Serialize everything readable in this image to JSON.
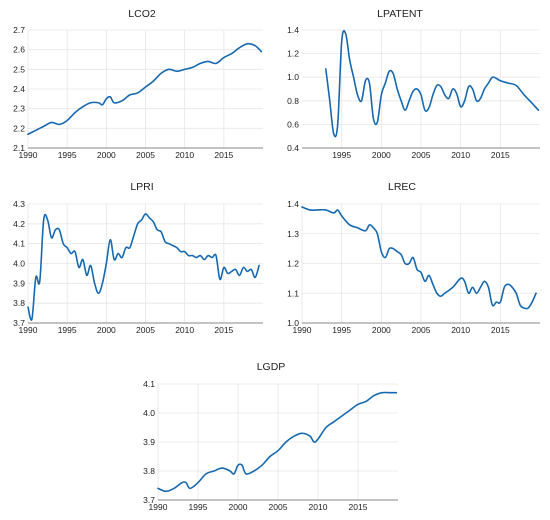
{
  "palette": {
    "line": "#1668b0",
    "grid": "#e6e6e6",
    "axis": "#666666"
  },
  "chart_data": [
    {
      "type": "line",
      "title": "LCO2",
      "xlim": [
        1990,
        2020
      ],
      "ylim": [
        2.1,
        2.7
      ],
      "xticks": [
        1990,
        1995,
        2000,
        2005,
        2010,
        2015
      ],
      "yticks": [
        2.1,
        2.2,
        2.3,
        2.4,
        2.5,
        2.6,
        2.7
      ],
      "series": [
        {
          "x": [
            1990,
            1991,
            1992,
            1993,
            1994,
            1995,
            1996,
            1997,
            1998,
            1999,
            1999.5,
            2000,
            2000.5,
            2001,
            2002,
            2003,
            2004,
            2005,
            2006,
            2007,
            2008,
            2009,
            2010,
            2011,
            2012,
            2013,
            2014,
            2015,
            2016,
            2017,
            2018,
            2019,
            2019.8
          ],
          "y": [
            2.17,
            2.19,
            2.21,
            2.23,
            2.22,
            2.24,
            2.28,
            2.31,
            2.33,
            2.33,
            2.32,
            2.35,
            2.36,
            2.33,
            2.34,
            2.37,
            2.38,
            2.41,
            2.44,
            2.48,
            2.5,
            2.49,
            2.5,
            2.51,
            2.53,
            2.54,
            2.53,
            2.56,
            2.58,
            2.61,
            2.63,
            2.62,
            2.59
          ]
        }
      ]
    },
    {
      "type": "line",
      "title": "LPATENT",
      "xlim": [
        1990,
        2020
      ],
      "ylim": [
        0.4,
        1.4
      ],
      "xticks": [
        1995,
        2000,
        2005,
        2010,
        2015
      ],
      "yticks": [
        0.4,
        0.6,
        0.8,
        1.0,
        1.2,
        1.4
      ],
      "series": [
        {
          "x": [
            1993,
            1993.5,
            1994,
            1994.5,
            1995,
            1995.5,
            1996,
            1996.5,
            1997,
            1997.5,
            1998,
            1998.5,
            1999,
            1999.5,
            2000,
            2000.5,
            2001,
            2001.5,
            2002,
            2002.5,
            2003,
            2003.5,
            2004,
            2004.5,
            2005,
            2005.5,
            2006,
            2006.5,
            2007,
            2007.5,
            2008,
            2008.5,
            2009,
            2009.5,
            2010,
            2010.5,
            2011,
            2011.5,
            2012,
            2012.5,
            2013,
            2013.5,
            2014,
            2014.5,
            2015,
            2016,
            2017,
            2018,
            2019,
            2019.8
          ],
          "y": [
            1.07,
            0.8,
            0.52,
            0.6,
            1.3,
            1.37,
            1.15,
            1.0,
            0.85,
            0.8,
            0.97,
            0.95,
            0.65,
            0.62,
            0.85,
            0.95,
            1.05,
            1.03,
            0.9,
            0.8,
            0.72,
            0.8,
            0.88,
            0.9,
            0.85,
            0.72,
            0.74,
            0.85,
            0.93,
            0.92,
            0.85,
            0.82,
            0.9,
            0.86,
            0.75,
            0.8,
            0.92,
            0.9,
            0.8,
            0.82,
            0.9,
            0.95,
            1.0,
            0.99,
            0.97,
            0.95,
            0.93,
            0.85,
            0.78,
            0.72
          ]
        }
      ]
    },
    {
      "type": "line",
      "title": "LPRI",
      "xlim": [
        1990,
        2020
      ],
      "ylim": [
        3.7,
        4.3
      ],
      "xticks": [
        1990,
        1995,
        2000,
        2005,
        2010,
        2015
      ],
      "yticks": [
        3.7,
        3.8,
        3.9,
        4.0,
        4.1,
        4.2,
        4.3
      ],
      "series": [
        {
          "x": [
            1990,
            1990.5,
            1991,
            1991.5,
            1992,
            1992.5,
            1993,
            1993.5,
            1994,
            1994.5,
            1995,
            1995.5,
            1996,
            1996.5,
            1997,
            1997.5,
            1998,
            1998.5,
            1999,
            1999.5,
            2000,
            2000.5,
            2001,
            2001.5,
            2002,
            2002.5,
            2003,
            2003.5,
            2004,
            2004.5,
            2005,
            2005.5,
            2006,
            2006.5,
            2007,
            2007.5,
            2008,
            2008.5,
            2009,
            2009.5,
            2010,
            2010.5,
            2011,
            2011.5,
            2012,
            2012.5,
            2013,
            2013.5,
            2014,
            2014.5,
            2015,
            2015.5,
            2016,
            2016.5,
            2017,
            2017.5,
            2018,
            2018.5,
            2019,
            2019.5
          ],
          "y": [
            3.78,
            3.72,
            3.93,
            3.91,
            4.22,
            4.22,
            4.13,
            4.17,
            4.17,
            4.1,
            4.08,
            4.05,
            4.06,
            3.98,
            4.02,
            3.94,
            3.99,
            3.9,
            3.85,
            3.9,
            4.0,
            4.12,
            4.02,
            4.05,
            4.03,
            4.08,
            4.08,
            4.14,
            4.2,
            4.22,
            4.25,
            4.23,
            4.21,
            4.17,
            4.16,
            4.11,
            4.1,
            4.09,
            4.08,
            4.06,
            4.06,
            4.04,
            4.04,
            4.03,
            4.04,
            4.02,
            4.04,
            4.03,
            4.04,
            3.92,
            3.98,
            3.95,
            3.96,
            3.97,
            3.94,
            3.98,
            3.96,
            3.97,
            3.93,
            3.99
          ]
        }
      ]
    },
    {
      "type": "line",
      "title": "LREC",
      "xlim": [
        1990,
        2020
      ],
      "ylim": [
        1.0,
        1.4
      ],
      "xticks": [
        1990,
        1995,
        2000,
        2005,
        2010,
        2015
      ],
      "yticks": [
        1.0,
        1.1,
        1.2,
        1.3,
        1.4
      ],
      "series": [
        {
          "x": [
            1990,
            1991,
            1992,
            1993,
            1994,
            1994.5,
            1995,
            1996,
            1997,
            1998,
            1998.5,
            1999,
            1999.5,
            2000,
            2000.5,
            2001,
            2001.5,
            2002,
            2002.5,
            2003,
            2003.5,
            2004,
            2004.5,
            2005,
            2005.5,
            2006,
            2006.5,
            2007,
            2007.5,
            2008,
            2009,
            2010,
            2010.5,
            2011,
            2011.5,
            2012,
            2012.5,
            2013,
            2013.5,
            2014,
            2014.5,
            2015,
            2015.5,
            2016,
            2016.5,
            2017,
            2017.5,
            2018,
            2018.5,
            2019,
            2019.5
          ],
          "y": [
            1.39,
            1.38,
            1.38,
            1.38,
            1.37,
            1.38,
            1.36,
            1.33,
            1.32,
            1.31,
            1.33,
            1.32,
            1.3,
            1.24,
            1.22,
            1.25,
            1.25,
            1.24,
            1.23,
            1.2,
            1.2,
            1.22,
            1.18,
            1.17,
            1.14,
            1.16,
            1.13,
            1.1,
            1.09,
            1.1,
            1.12,
            1.15,
            1.14,
            1.1,
            1.12,
            1.1,
            1.12,
            1.14,
            1.12,
            1.06,
            1.07,
            1.07,
            1.12,
            1.13,
            1.12,
            1.1,
            1.06,
            1.05,
            1.05,
            1.07,
            1.1
          ]
        }
      ]
    },
    {
      "type": "line",
      "title": "LGDP",
      "xlim": [
        1990,
        2020
      ],
      "ylim": [
        3.7,
        4.1
      ],
      "xticks": [
        1990,
        1995,
        2000,
        2005,
        2010,
        2015
      ],
      "yticks": [
        3.7,
        3.8,
        3.9,
        4.0,
        4.1
      ],
      "series": [
        {
          "x": [
            1990,
            1991,
            1992,
            1993,
            1993.5,
            1994,
            1995,
            1996,
            1997,
            1998,
            1999,
            1999.5,
            2000,
            2000.5,
            2001,
            2002,
            2003,
            2004,
            2005,
            2006,
            2007,
            2008,
            2009,
            2009.5,
            2010,
            2011,
            2012,
            2013,
            2014,
            2015,
            2016,
            2017,
            2018,
            2019,
            2019.8
          ],
          "y": [
            3.74,
            3.73,
            3.74,
            3.76,
            3.76,
            3.74,
            3.76,
            3.79,
            3.8,
            3.81,
            3.8,
            3.79,
            3.82,
            3.82,
            3.79,
            3.8,
            3.82,
            3.85,
            3.87,
            3.9,
            3.92,
            3.93,
            3.92,
            3.9,
            3.91,
            3.95,
            3.97,
            3.99,
            4.01,
            4.03,
            4.04,
            4.06,
            4.07,
            4.07,
            4.07
          ]
        }
      ]
    }
  ]
}
